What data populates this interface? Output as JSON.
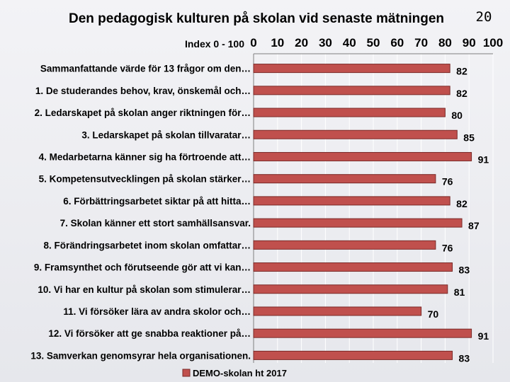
{
  "page_number": "20",
  "chart_data": {
    "type": "bar",
    "orientation": "horizontal",
    "title": "Den pedagogisk kulturen på skolan vid senaste mätningen",
    "ylabel": "Index 0 - 100",
    "xlim": [
      0,
      100
    ],
    "x_ticks": [
      "0",
      "10",
      "20",
      "30",
      "40",
      "50",
      "60",
      "70",
      "80",
      "90",
      "100"
    ],
    "x_axis_position": "top",
    "grid": true,
    "legend_position": "bottom",
    "categories": [
      "Sammanfattande värde för 13 frågor om den…",
      "1. De studerandes behov, krav, önskemål och…",
      "2.    Ledarskapet på skolan anger riktningen för…",
      "3.    Ledarskapet på skolan tillvaratar…",
      "4. Medarbetarna känner sig ha förtroende att…",
      "5.    Kompetensutvecklingen på skolan stärker…",
      "6.    Förbättringsarbetet siktar på att hitta…",
      "7.    Skolan känner ett stort samhällsansvar.",
      "8.    Förändringsarbetet inom skolan omfattar…",
      "9.    Framsynthet och förutseende gör att vi kan…",
      "10.    Vi har en kultur på skolan som stimulerar…",
      "11. Vi försöker lära av andra skolor och…",
      "12. Vi försöker att ge snabba reaktioner på…",
      "13. Samverkan genomsyrar hela organisationen."
    ],
    "series": [
      {
        "name": "DEMO-skolan ht 2017",
        "color": "#c0504d",
        "values": [
          82,
          82,
          80,
          85,
          91,
          76,
          82,
          87,
          76,
          83,
          81,
          70,
          91,
          83
        ]
      }
    ]
  }
}
